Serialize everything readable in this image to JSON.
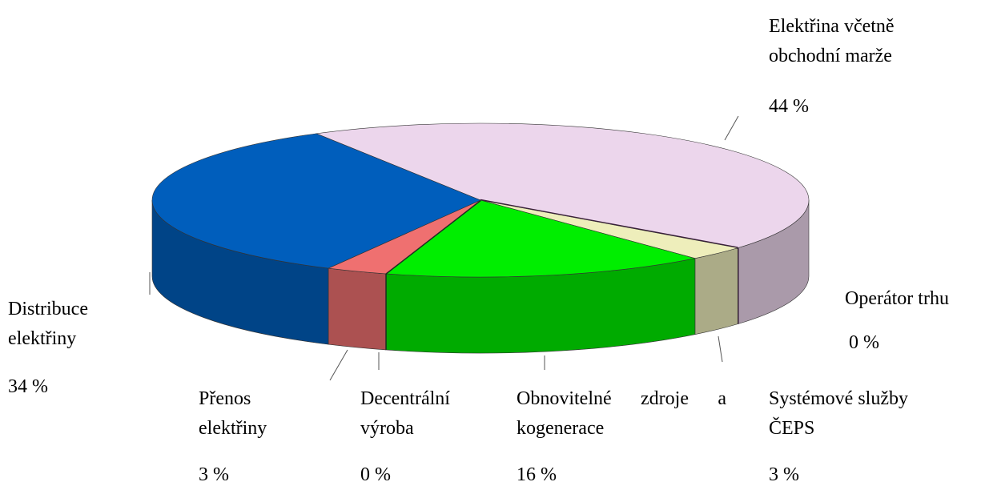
{
  "chart_data": {
    "type": "pie",
    "categories": [
      "Elektřina včetně obchodní marže",
      "Operátor trhu",
      "Systémové služby ČEPS",
      "Obnovitelné zdroje a kogenerace",
      "Decentrální výroba",
      "Přenos elektřiny",
      "Distribuce elektřiny"
    ],
    "values": [
      44,
      0,
      3,
      16,
      0,
      3,
      34
    ],
    "value_labels": [
      "44 %",
      "0 %",
      "3 %",
      "16 %",
      "0 %",
      "3 %",
      "34 %"
    ],
    "colors": [
      "#ecd6ec",
      "#3a1a3a",
      "#eeeebb",
      "#00ee00",
      "#1a2a1a",
      "#ef7070",
      "#005ebc"
    ]
  }
}
